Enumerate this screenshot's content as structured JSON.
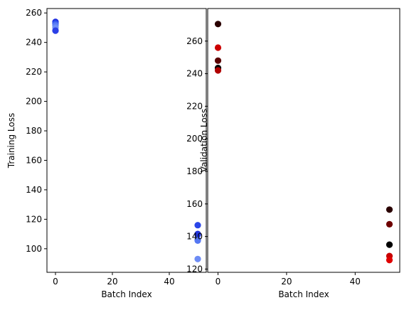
{
  "chart_data": [
    {
      "type": "scatter",
      "xlabel": "Batch Index",
      "ylabel": "Training Loss",
      "xlim": [
        -3,
        53
      ],
      "ylim": [
        84,
        263
      ],
      "xticks": [
        0,
        20,
        40
      ],
      "yticks": [
        100,
        120,
        140,
        160,
        180,
        200,
        220,
        240,
        260
      ],
      "grid": false,
      "points": [
        {
          "x": 0,
          "y": 254,
          "color": "#1f2fe0"
        },
        {
          "x": 0,
          "y": 253,
          "color": "#2340e8"
        },
        {
          "x": 0,
          "y": 252.5,
          "color": "#3a5cf0"
        },
        {
          "x": 0,
          "y": 251.5,
          "color": "#5a7cf5"
        },
        {
          "x": 0,
          "y": 250,
          "color": "#6e8ef7"
        },
        {
          "x": 0,
          "y": 248,
          "color": "#2b3fe6"
        },
        {
          "x": 50,
          "y": 116,
          "color": "#2a45e8"
        },
        {
          "x": 50,
          "y": 110,
          "color": "#1a28d8"
        },
        {
          "x": 50,
          "y": 109.5,
          "color": "#2236e0"
        },
        {
          "x": 50,
          "y": 106,
          "color": "#3f63f0"
        },
        {
          "x": 50,
          "y": 105.5,
          "color": "#5577f2"
        },
        {
          "x": 50,
          "y": 93,
          "color": "#6d8cf5"
        }
      ]
    },
    {
      "type": "scatter",
      "xlabel": "Batch Index",
      "ylabel": "Validation Loss",
      "xlim": [
        -3,
        53
      ],
      "ylim": [
        118,
        280
      ],
      "xticks": [
        0,
        20,
        40
      ],
      "yticks": [
        120,
        140,
        160,
        180,
        200,
        220,
        240,
        260
      ],
      "grid": false,
      "points": [
        {
          "x": 0,
          "y": 270.5,
          "color": "#2a0000"
        },
        {
          "x": 0,
          "y": 256,
          "color": "#cc0000"
        },
        {
          "x": 0,
          "y": 248,
          "color": "#5a0000"
        },
        {
          "x": 0,
          "y": 243.5,
          "color": "#000000"
        },
        {
          "x": 0,
          "y": 242,
          "color": "#b00000"
        },
        {
          "x": 50,
          "y": 156.5,
          "color": "#2a0000"
        },
        {
          "x": 50,
          "y": 147.5,
          "color": "#6e0000"
        },
        {
          "x": 50,
          "y": 135,
          "color": "#000000"
        },
        {
          "x": 50,
          "y": 128,
          "color": "#c80000"
        },
        {
          "x": 50,
          "y": 125.5,
          "color": "#e00000"
        }
      ]
    }
  ]
}
